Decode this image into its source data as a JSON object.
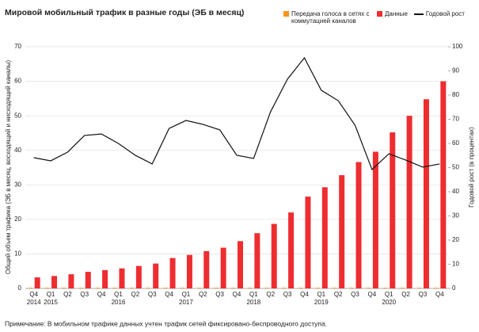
{
  "chart_data": {
    "type": "bar_line",
    "title": "Мировой мобильный трафик в разные годы (ЭБ в месяц)",
    "ylabel": "Общий объем трафика (ЭБ в месяц, восходящий и нисходящий каналы)",
    "y2label": "Годовой рост (в процентах)",
    "note": "Примечание: В мобильном трафике данных учтен трафик сетей фиксировано-беспроводного доступа.",
    "categories": [
      [
        "Q4",
        "2014"
      ],
      [
        "Q1",
        "2015"
      ],
      [
        "Q2"
      ],
      [
        "Q3"
      ],
      [
        "Q4"
      ],
      [
        "Q1",
        "2016"
      ],
      [
        "Q2"
      ],
      [
        "Q3"
      ],
      [
        "Q4"
      ],
      [
        "Q1",
        "2017"
      ],
      [
        "Q2"
      ],
      [
        "Q3"
      ],
      [
        "Q4"
      ],
      [
        "Q1",
        "2018"
      ],
      [
        "Q2"
      ],
      [
        "Q3"
      ],
      [
        "Q4"
      ],
      [
        "Q1",
        "2019"
      ],
      [
        "Q2"
      ],
      [
        "Q3"
      ],
      [
        "Q4"
      ],
      [
        "Q1",
        "2020"
      ],
      [
        "Q2"
      ],
      [
        "Q3"
      ],
      [
        "Q4"
      ]
    ],
    "series": [
      {
        "name": "Передача голоса в сетях с коммутацией каналов",
        "color": "#f7941d",
        "kind": "bar",
        "values": [
          0.2,
          0.2,
          0.2,
          0.2,
          0.2,
          0.2,
          0.2,
          0.2,
          0.2,
          0.2,
          0.2,
          0.2,
          0.2,
          0.2,
          0.2,
          0.2,
          0.2,
          0.2,
          0.2,
          0.2,
          0.2,
          0.2,
          0.2,
          0.2,
          0.2
        ]
      },
      {
        "name": "Данные",
        "color": "#ee2d30",
        "kind": "bar",
        "values": [
          3.2,
          3.6,
          4.1,
          4.8,
          5.3,
          5.8,
          6.5,
          7.2,
          8.8,
          9.7,
          10.8,
          11.8,
          13.7,
          16.0,
          18.7,
          22.0,
          26.6,
          29.3,
          32.8,
          36.6,
          39.6,
          45.2,
          50.0,
          54.8,
          60.0
        ]
      },
      {
        "name": "Годовой рост",
        "color": "#111111",
        "kind": "line",
        "axis": "y2",
        "values": [
          54.1,
          52.8,
          56.4,
          63.3,
          63.9,
          60.0,
          55.1,
          51.5,
          66.2,
          69.5,
          67.9,
          65.6,
          55.1,
          53.8,
          73.1,
          86.6,
          95.4,
          82.0,
          77.7,
          67.5,
          49.2,
          55.7,
          53.1,
          50.2,
          51.5
        ]
      }
    ],
    "ylim": [
      0,
      70
    ],
    "yticks": [
      0,
      10,
      20,
      30,
      40,
      50,
      60,
      70
    ],
    "y2lim": [
      0,
      100
    ],
    "y2ticks": [
      0,
      10,
      20,
      30,
      40,
      50,
      60,
      70,
      80,
      90,
      100
    ],
    "grid": true
  }
}
